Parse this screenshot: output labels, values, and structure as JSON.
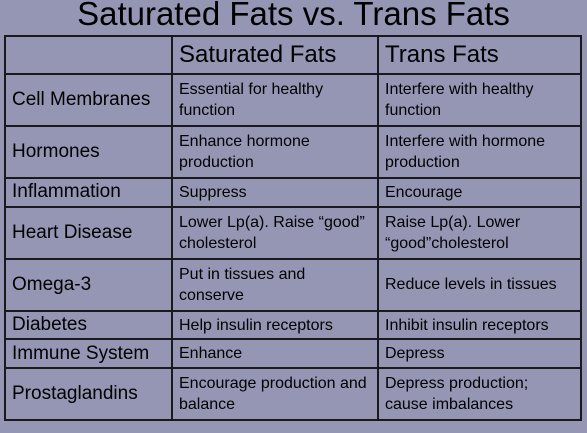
{
  "title": "Saturated Fats vs. Trans Fats",
  "table": {
    "headers": [
      "",
      "Saturated Fats",
      "Trans Fats"
    ],
    "rows": [
      {
        "label": "Cell Membranes",
        "saturated": "Essential for healthy function",
        "trans": "Interfere with healthy function"
      },
      {
        "label": "Hormones",
        "saturated": "Enhance hormone production",
        "trans": "Interfere with hormone production"
      },
      {
        "label": "Inflammation",
        "saturated": "Suppress",
        "trans": "Encourage"
      },
      {
        "label": "Heart Disease",
        "saturated": "Lower Lp(a).  Raise “good” cholesterol",
        "trans": "Raise Lp(a).  Lower “good”cholesterol"
      },
      {
        "label": "Omega-3",
        "saturated": "Put in tissues and conserve",
        "trans": "Reduce levels in tissues"
      },
      {
        "label": "Diabetes",
        "saturated": "Help insulin receptors",
        "trans": "Inhibit insulin receptors"
      },
      {
        "label": "Immune System",
        "saturated": "Enhance",
        "trans": "Depress"
      },
      {
        "label": "Prostaglandins",
        "saturated": "Encourage production and balance",
        "trans": "Depress production; cause imbalances"
      }
    ]
  }
}
